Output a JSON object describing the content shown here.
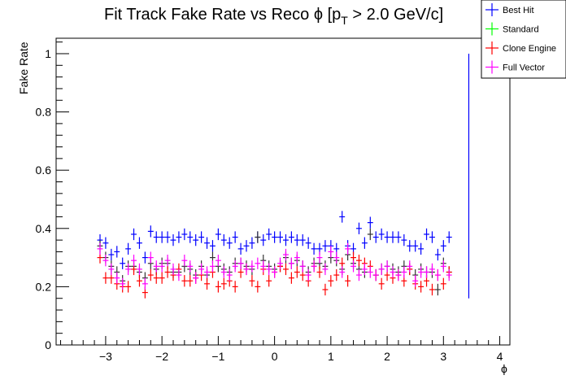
{
  "chart_data": {
    "type": "scatter",
    "title": "Fit Track Fake Rate vs Reco ϕ [p",
    "title_sub": "T",
    "title_suffix": " > 2.0 GeV/c]",
    "xlabel": "ϕ",
    "ylabel": "Fake Rate",
    "xlim": [
      -3.88,
      4.18
    ],
    "ylim": [
      0,
      1.053
    ],
    "xticks": [
      -3,
      -2,
      -1,
      0,
      1,
      2,
      3,
      4
    ],
    "xtick_labels": [
      "−3",
      "−2",
      "−1",
      "0",
      "1",
      "2",
      "3",
      "4"
    ],
    "yticks": [
      0,
      0.2,
      0.4,
      0.6,
      0.8,
      1
    ],
    "ytick_labels": [
      "0",
      "0.2",
      "0.4",
      "0.6",
      "0.8",
      "1"
    ],
    "grid": false,
    "legend_position": "top-right",
    "x_start": -3.1,
    "x_step": 0.1,
    "x_halfwidth": 0.05,
    "y_err": 0.02,
    "series": [
      {
        "name": "Best Hit",
        "color": "#0000ff",
        "marker_color": "#0000ff",
        "values": [
          0.36,
          0.35,
          0.31,
          0.32,
          0.28,
          0.33,
          0.38,
          0.35,
          0.3,
          0.39,
          0.37,
          0.37,
          0.37,
          0.36,
          0.37,
          0.38,
          0.37,
          0.36,
          0.37,
          0.35,
          0.34,
          0.38,
          0.36,
          0.35,
          0.37,
          0.33,
          0.34,
          0.35,
          0.37,
          0.36,
          0.38,
          0.37,
          0.37,
          0.36,
          0.37,
          0.36,
          0.36,
          0.35,
          0.33,
          0.33,
          0.34,
          0.34,
          0.33,
          0.44,
          0.34,
          0.33,
          0.4,
          0.35,
          0.42,
          0.37,
          0.38,
          0.37,
          0.37,
          0.37,
          0.36,
          0.34,
          0.34,
          0.33,
          0.38,
          0.37,
          0.31,
          0.34,
          0.37
        ],
        "extra_point": {
          "x": 3.45,
          "y": 0.58,
          "err": 0.42
        }
      },
      {
        "name": "Standard",
        "color": "#00ff00",
        "marker_color": "#333333",
        "values": [
          0.34,
          0.3,
          0.27,
          0.25,
          0.22,
          0.27,
          0.27,
          0.25,
          0.23,
          0.28,
          0.26,
          0.28,
          0.28,
          0.25,
          0.25,
          0.27,
          0.26,
          0.24,
          0.27,
          0.24,
          0.3,
          0.27,
          0.26,
          0.25,
          0.28,
          0.28,
          0.27,
          0.26,
          0.37,
          0.29,
          0.27,
          0.26,
          0.27,
          0.3,
          0.28,
          0.29,
          0.27,
          0.25,
          0.28,
          0.28,
          0.27,
          0.3,
          0.29,
          0.26,
          0.31,
          0.28,
          0.26,
          0.25,
          0.38,
          0.24,
          0.26,
          0.27,
          0.26,
          0.25,
          0.27,
          0.26,
          0.24,
          0.26,
          0.25,
          0.25,
          0.19,
          0.28,
          0.25
        ]
      },
      {
        "name": "Clone Engine",
        "color": "#ff0000",
        "marker_color": "#ff0000",
        "values": [
          0.3,
          0.23,
          0.23,
          0.21,
          0.2,
          0.2,
          0.26,
          0.22,
          0.18,
          0.24,
          0.23,
          0.23,
          0.25,
          0.24,
          0.26,
          0.22,
          0.22,
          0.23,
          0.24,
          0.21,
          0.25,
          0.2,
          0.21,
          0.22,
          0.2,
          0.25,
          0.26,
          0.22,
          0.2,
          0.26,
          0.22,
          0.25,
          0.27,
          0.26,
          0.23,
          0.25,
          0.24,
          0.22,
          0.27,
          0.25,
          0.19,
          0.22,
          0.24,
          0.28,
          0.22,
          0.3,
          0.29,
          0.28,
          0.27,
          0.24,
          0.21,
          0.24,
          0.23,
          0.24,
          0.22,
          0.26,
          0.21,
          0.2,
          0.22,
          0.19,
          0.24,
          0.21,
          0.25
        ]
      },
      {
        "name": "Full Vector",
        "color": "#ff00ff",
        "marker_color": "#ff00ff",
        "values": [
          0.33,
          0.29,
          0.26,
          0.23,
          0.21,
          0.26,
          0.29,
          0.26,
          0.21,
          0.3,
          0.27,
          0.27,
          0.29,
          0.26,
          0.24,
          0.29,
          0.27,
          0.23,
          0.26,
          0.25,
          0.27,
          0.29,
          0.25,
          0.24,
          0.27,
          0.28,
          0.26,
          0.27,
          0.28,
          0.27,
          0.26,
          0.25,
          0.28,
          0.31,
          0.28,
          0.3,
          0.27,
          0.24,
          0.27,
          0.3,
          0.26,
          0.32,
          0.3,
          0.25,
          0.33,
          0.27,
          0.24,
          0.26,
          0.25,
          0.24,
          0.26,
          0.27,
          0.25,
          0.24,
          0.25,
          0.27,
          0.22,
          0.25,
          0.25,
          0.26,
          0.24,
          0.27,
          0.24
        ]
      }
    ]
  }
}
